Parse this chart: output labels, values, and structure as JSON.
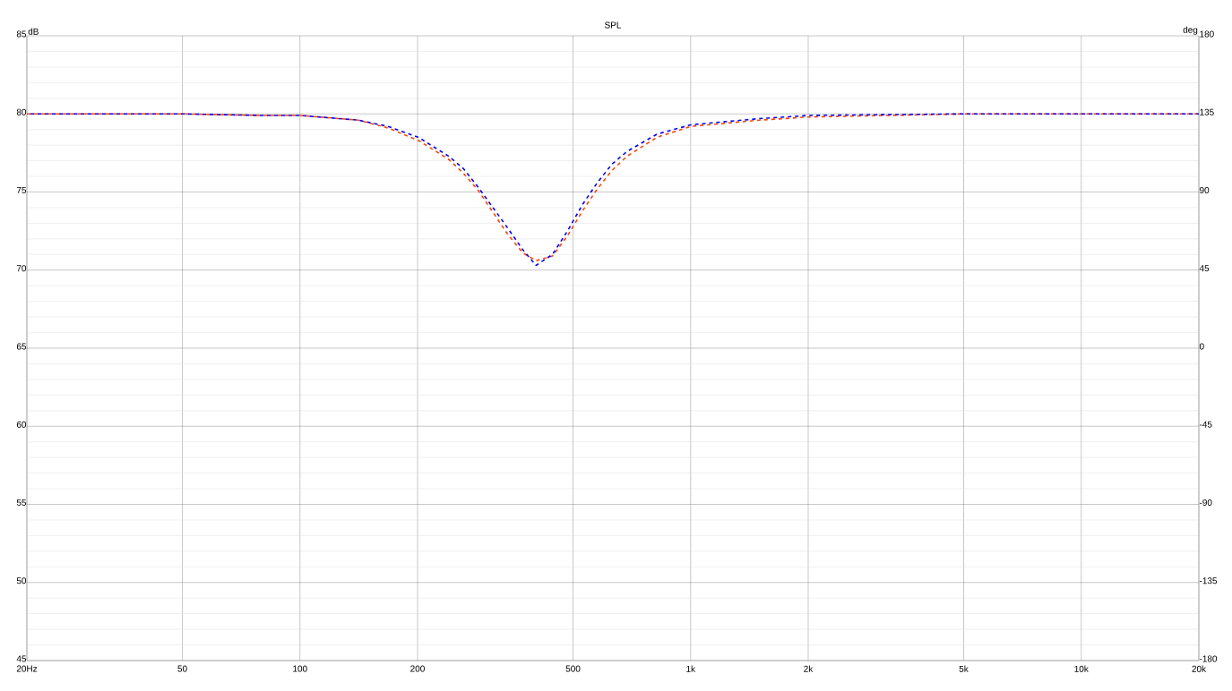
{
  "chart_data": {
    "type": "line",
    "title": "SPL",
    "ylabel": "dB",
    "y2label": "deg",
    "x": [
      20,
      50,
      80,
      100,
      141,
      168,
      201,
      240,
      262,
      286,
      312,
      340,
      372,
      402,
      443,
      484,
      529,
      577,
      630,
      688,
      820,
      1000,
      1500,
      2000,
      5000,
      20000
    ],
    "series": [
      {
        "color": "#ff4500",
        "values": [
          80,
          80,
          79.9,
          79.9,
          79.6,
          79.1,
          78.3,
          77.1,
          76.2,
          75.1,
          73.7,
          72.3,
          71.1,
          70.6,
          70.9,
          72.2,
          73.8,
          75.2,
          76.4,
          77.3,
          78.5,
          79.2,
          79.6,
          79.8,
          80,
          80
        ]
      },
      {
        "color": "#0000ff",
        "values": [
          80,
          80,
          79.9,
          79.9,
          79.6,
          79.2,
          78.5,
          77.3,
          76.5,
          75.3,
          74.0,
          72.7,
          71.3,
          70.3,
          71.0,
          72.5,
          74.2,
          75.6,
          76.8,
          77.6,
          78.7,
          79.3,
          79.7,
          79.9,
          80,
          80
        ]
      }
    ],
    "log": "x",
    "xlim": [
      20,
      20000
    ],
    "xticks": [
      {
        "value": 20,
        "label": "20Hz"
      },
      50,
      100,
      200,
      500,
      {
        "value": 1000,
        "label": "1k"
      },
      {
        "value": 2000,
        "label": "2k"
      },
      {
        "value": 5000,
        "label": "5k"
      },
      {
        "value": 10000,
        "label": "10k"
      },
      {
        "value": 20000,
        "label": "20k"
      }
    ],
    "ylim": [
      45,
      85
    ],
    "yticks": [
      45,
      50,
      55,
      60,
      65,
      70,
      75,
      80,
      85
    ],
    "y2lim": [
      -180,
      180
    ],
    "y2ticks": [
      -180,
      -135,
      -90,
      -45,
      0,
      45,
      90,
      135,
      180
    ],
    "grid": true,
    "line_style": "dashed"
  }
}
